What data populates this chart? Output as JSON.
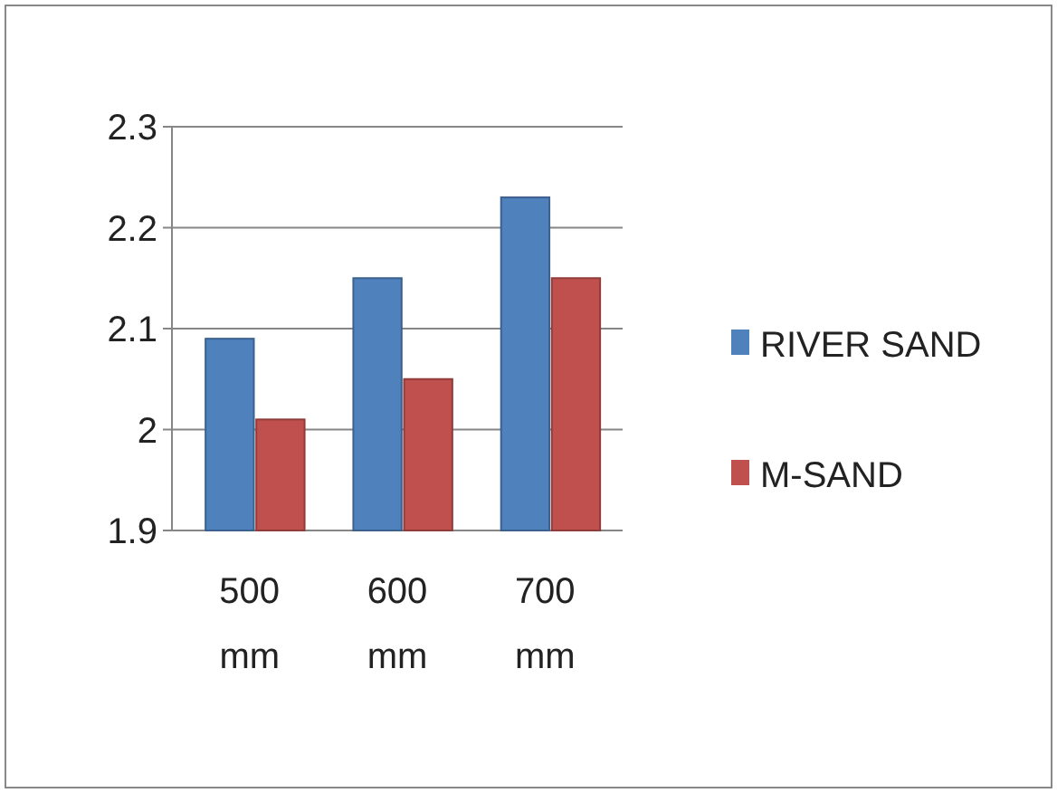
{
  "chart_data": {
    "type": "bar",
    "categories": [
      "500 mm",
      "600 mm",
      "700 mm"
    ],
    "series": [
      {
        "name": "RIVER SAND",
        "color": "#4f81bd",
        "values": [
          2.09,
          2.15,
          2.23
        ]
      },
      {
        "name": "M-SAND",
        "color": "#c0504d",
        "values": [
          2.01,
          2.05,
          2.15
        ]
      }
    ],
    "ylim": [
      1.9,
      2.3
    ],
    "yticks": [
      1.9,
      2,
      2.1,
      2.2,
      2.3
    ],
    "grid": "y",
    "legend": "right"
  }
}
